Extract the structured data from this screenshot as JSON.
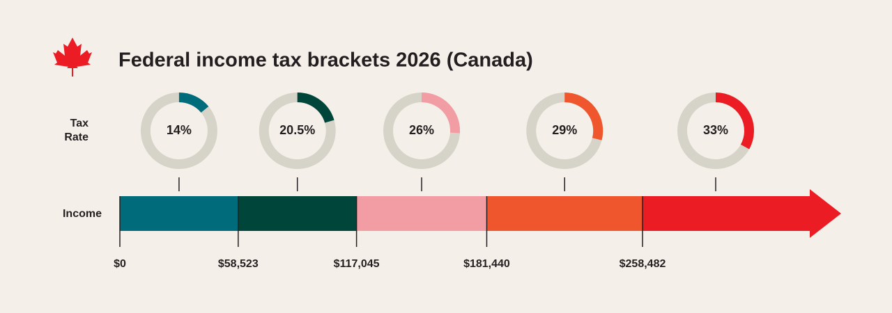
{
  "chart_data": {
    "type": "tax-brackets",
    "title": "Federal income tax brackets 2026 (Canada)",
    "rate_label": "Tax Rate",
    "income_label": "Income",
    "rates": [
      {
        "value": 14,
        "label": "14%"
      },
      {
        "value": 20.5,
        "label": "20.5%"
      },
      {
        "value": 26,
        "label": "26%"
      },
      {
        "value": 29,
        "label": "29%"
      },
      {
        "value": 33,
        "label": "33%"
      }
    ],
    "colors": [
      "#006b7a",
      "#00453a",
      "#f29ca3",
      "#f0562d",
      "#ec1c24"
    ],
    "thresholds": [
      {
        "value": 0,
        "label": "$0"
      },
      {
        "value": 58523,
        "label": "$58,523"
      },
      {
        "value": 117045,
        "label": "$117,045"
      },
      {
        "value": 181440,
        "label": "$181,440"
      },
      {
        "value": 258482,
        "label": "$258,482"
      }
    ]
  }
}
